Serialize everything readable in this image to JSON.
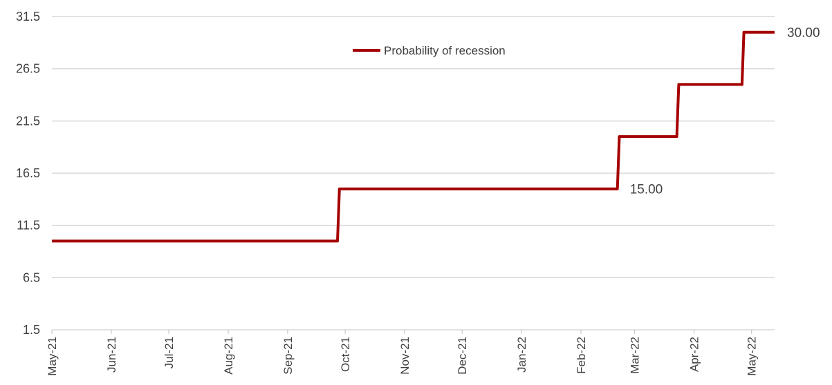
{
  "chart_data": {
    "type": "line",
    "step": true,
    "title": "",
    "xlabel": "",
    "ylabel": "",
    "ylim": [
      1.5,
      31.5
    ],
    "y_ticks": [
      "1.5",
      "6.5",
      "11.5",
      "16.5",
      "21.5",
      "26.5",
      "31.5"
    ],
    "x_tick_labels": [
      "May-21",
      "Jun-21",
      "Jul-21",
      "Aug-21",
      "Sep-21",
      "Oct-21",
      "Nov-21",
      "Dec-21",
      "Jan-22",
      "Feb-22",
      "Mar-22",
      "Apr-22",
      "May-22"
    ],
    "grid": "horizontal",
    "legend_position": "top-center",
    "series": [
      {
        "name": "Probability of recession",
        "color": "#a50000",
        "points": [
          {
            "x": "2021-05-01",
            "y": 10
          },
          {
            "x": "2021-09-27",
            "y": 10
          },
          {
            "x": "2021-09-28",
            "y": 15
          },
          {
            "x": "2022-02-20",
            "y": 15
          },
          {
            "x": "2022-02-21",
            "y": 20
          },
          {
            "x": "2022-03-23",
            "y": 20
          },
          {
            "x": "2022-03-24",
            "y": 25
          },
          {
            "x": "2022-04-26",
            "y": 25
          },
          {
            "x": "2022-04-27",
            "y": 30
          },
          {
            "x": "2022-05-13",
            "y": 30
          }
        ]
      }
    ],
    "annotations": [
      {
        "text": "15.00",
        "x": "2022-02-20",
        "y": 15
      },
      {
        "text": "30.00",
        "x": "2022-05-13",
        "y": 30
      }
    ]
  }
}
